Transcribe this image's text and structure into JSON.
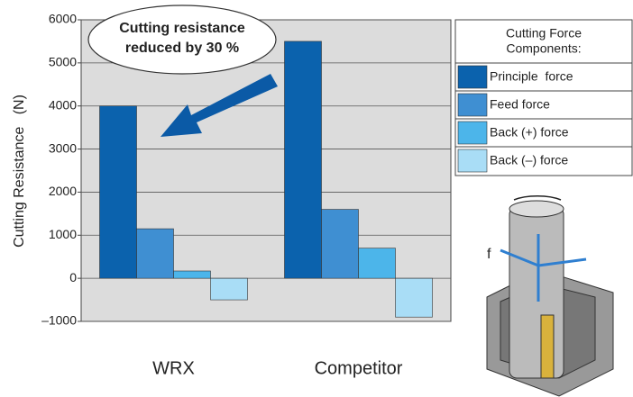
{
  "chart_data": {
    "type": "bar",
    "ylabel": "Cutting Resistance   (N)",
    "categories": [
      "WRX",
      "Competitor"
    ],
    "series": [
      {
        "name": "Principle  force",
        "color": "#0b62ad",
        "values": [
          4000,
          5500
        ]
      },
      {
        "name": "Feed force",
        "color": "#3f8fd2",
        "values": [
          1150,
          1600
        ]
      },
      {
        "name": "Back (+) force",
        "color": "#4cb5ea",
        "values": [
          170,
          700
        ]
      },
      {
        "name": "Back (–) force",
        "color": "#a9ddf6",
        "values": [
          -500,
          -900
        ]
      }
    ],
    "ylim": [
      -1000,
      6000
    ],
    "yticks": [
      {
        "value": -1000,
        "label": "–1000"
      },
      0,
      1000,
      2000,
      3000,
      4000,
      5000,
      6000
    ],
    "grid": true,
    "legend_title": [
      "Cutting Force",
      "Components:"
    ],
    "annotation": [
      "Cutting resistance",
      "reduced by 30 %"
    ],
    "figure_label": "f"
  }
}
